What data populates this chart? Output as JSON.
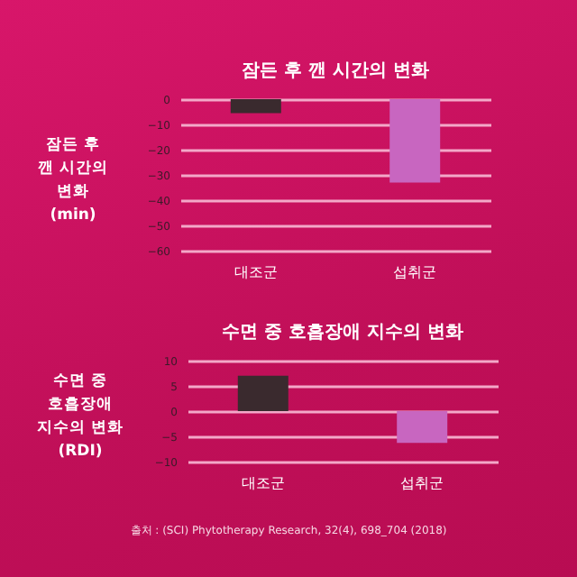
{
  "chart_data": [
    {
      "type": "bar",
      "title": "잠든 후 깬 시간의 변화",
      "ylabel": "잠든 후\n깬 시간의\n변화\n(min)",
      "categories": [
        "대조군",
        "섭취군"
      ],
      "values": [
        -5.5,
        -33
      ],
      "colors": [
        "#3a2a2e",
        "#c866c0"
      ],
      "ylim": [
        -60,
        0
      ],
      "yticks": [
        0,
        -10,
        -20,
        -30,
        -40,
        -50,
        -60
      ],
      "grid": "y"
    },
    {
      "type": "bar",
      "title": "수면 중 호흡장애 지수의 변화",
      "ylabel": "수면 중\n호흡장애\n지수의 변화\n(RDI)",
      "categories": [
        "대조군",
        "섭취군"
      ],
      "values": [
        7,
        -6.3
      ],
      "colors": [
        "#3a2a2e",
        "#c866c0"
      ],
      "ylim": [
        -10,
        10
      ],
      "yticks": [
        10,
        5,
        0,
        -5,
        -10
      ],
      "grid": "y",
      "annotations": [
        "출처 : (SCI) Phytotherapy Research, 32(4), 698_704 (2018)"
      ]
    }
  ]
}
